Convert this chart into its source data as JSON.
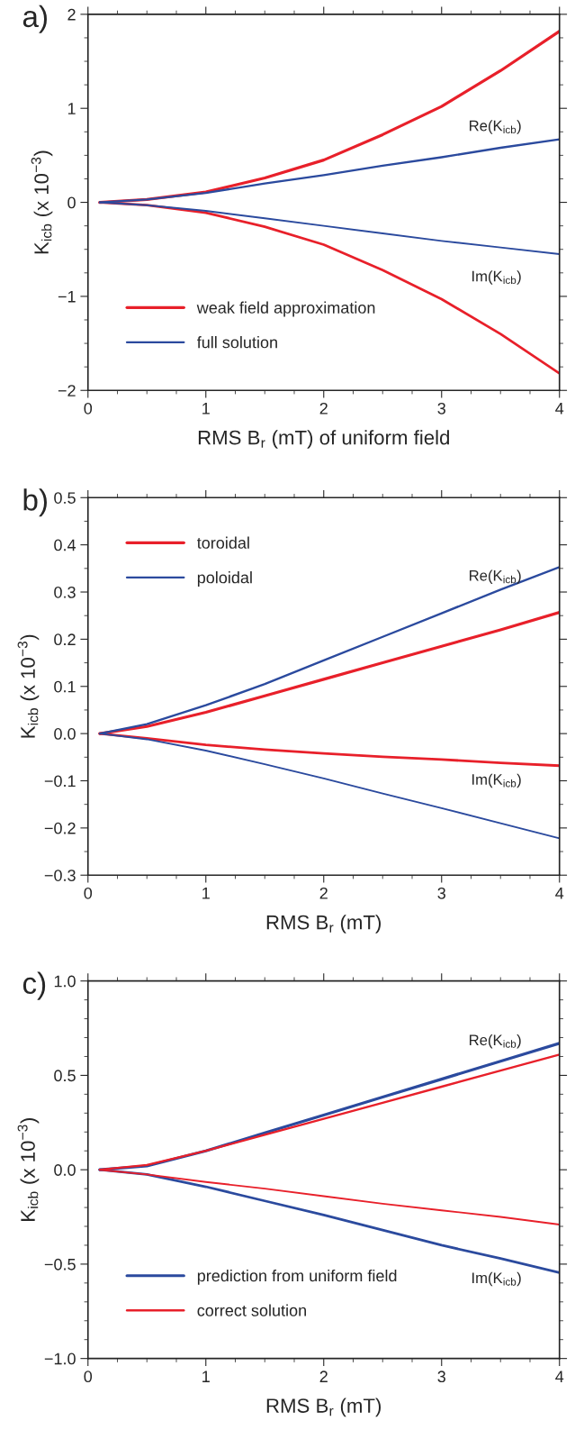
{
  "chart_data": [
    {
      "type": "line",
      "title": "a)",
      "xlabel": "RMS B$_{r}$ (mT) of uniform field",
      "ylabel": "K$_{icb}$ (x 10$^{−3}$)",
      "x": [
        0.1,
        0.5,
        1,
        1.5,
        2,
        2.5,
        3,
        3.5,
        4
      ],
      "series": [
        {
          "name": "weak field approximation",
          "color": "#e8202a",
          "values": [
            0,
            0.03,
            0.11,
            0.26,
            0.45,
            0.72,
            1.02,
            1.4,
            1.82
          ]
        },
        {
          "color": "#e8202a",
          "values": [
            0,
            -0.03,
            -0.11,
            -0.26,
            -0.45,
            -0.72,
            -1.03,
            -1.4,
            -1.82
          ]
        },
        {
          "name": "full solution",
          "color": "#2b4a9e",
          "values": [
            0,
            0.03,
            0.1,
            0.2,
            0.29,
            0.39,
            0.48,
            0.58,
            0.67
          ]
        },
        {
          "color": "#2b4a9e",
          "values": [
            0,
            -0.03,
            -0.09,
            -0.17,
            -0.25,
            -0.33,
            -0.41,
            -0.48,
            -0.55
          ]
        }
      ],
      "annotations": [
        "Re(K$_{icb}$)",
        "Im(K$_{icb}$)"
      ],
      "xlim": [
        0,
        4
      ],
      "xticks": [
        0,
        1,
        2,
        3,
        4
      ],
      "ylim": [
        -2,
        2
      ],
      "yticks": [
        {
          "value": -2,
          "label": "−2"
        },
        {
          "value": -1,
          "label": "−1"
        },
        0,
        1,
        2
      ],
      "legend": "bottom left",
      "grid": false,
      "line_style": "solid"
    },
    {
      "type": "line",
      "title": "b)",
      "xlabel": "RMS B$_{r}$ (mT)",
      "ylabel": "K$_{icb}$ (x 10$^{−3}$)",
      "x": [
        0.1,
        0.5,
        1,
        1.5,
        2,
        2.5,
        3,
        3.5,
        4
      ],
      "series": [
        {
          "name": "toroidal",
          "color": "#e8202a",
          "values": [
            0,
            0.015,
            0.045,
            0.08,
            0.115,
            0.15,
            0.185,
            0.22,
            0.257
          ]
        },
        {
          "color": "#e8202a",
          "values": [
            0,
            -0.01,
            -0.024,
            -0.034,
            -0.042,
            -0.049,
            -0.055,
            -0.062,
            -0.068
          ]
        },
        {
          "name": "poloidal",
          "color": "#2b4a9e",
          "values": [
            0,
            0.02,
            0.06,
            0.105,
            0.155,
            0.205,
            0.255,
            0.305,
            0.353
          ]
        },
        {
          "color": "#2b4a9e",
          "values": [
            0,
            -0.012,
            -0.036,
            -0.065,
            -0.095,
            -0.127,
            -0.158,
            -0.19,
            -0.222
          ]
        }
      ],
      "annotations": [
        "Re(K$_{icb}$)",
        "Im(K$_{icb}$)"
      ],
      "xlim": [
        0,
        4
      ],
      "xticks": [
        0,
        1,
        2,
        3,
        4
      ],
      "ylim": [
        -0.3,
        0.5
      ],
      "yticks": [
        {
          "value": -0.3,
          "label": "−0.3"
        },
        {
          "value": -0.2,
          "label": "−0.2"
        },
        {
          "value": -0.1,
          "label": "−0.1"
        },
        {
          "value": 0,
          "label": "0.0"
        },
        0.1,
        0.2,
        0.3,
        0.4,
        0.5
      ],
      "legend": "top left",
      "grid": false,
      "line_style": "solid"
    },
    {
      "type": "line",
      "title": "c)",
      "xlabel": "RMS B$_{r}$ (mT)",
      "ylabel": "K$_{icb}$ (x 10$^{−3}$)",
      "x": [
        0.1,
        0.5,
        1,
        1.5,
        2,
        2.5,
        3,
        3.5,
        4
      ],
      "series": [
        {
          "name": "prediction from uniform field",
          "color": "#2b4a9e",
          "values": [
            0,
            0.02,
            0.1,
            0.195,
            0.29,
            0.385,
            0.48,
            0.575,
            0.67
          ]
        },
        {
          "color": "#2b4a9e",
          "values": [
            0,
            -0.025,
            -0.09,
            -0.165,
            -0.24,
            -0.32,
            -0.4,
            -0.47,
            -0.545
          ]
        },
        {
          "name": "correct solution",
          "color": "#e8202a",
          "values": [
            0,
            0.025,
            0.1,
            0.185,
            0.27,
            0.355,
            0.44,
            0.525,
            0.61
          ]
        },
        {
          "color": "#e8202a",
          "values": [
            0,
            -0.025,
            -0.065,
            -0.1,
            -0.14,
            -0.18,
            -0.215,
            -0.25,
            -0.29
          ]
        }
      ],
      "annotations": [
        "Re(K$_{icb}$)",
        "Im(K$_{icb}$)"
      ],
      "xlim": [
        0,
        4
      ],
      "xticks": [
        0,
        1,
        2,
        3,
        4
      ],
      "ylim": [
        -1,
        1
      ],
      "yticks": [
        {
          "value": -1,
          "label": "−1.0"
        },
        {
          "value": -0.5,
          "label": "−0.5"
        },
        {
          "value": 0,
          "label": "0.0"
        },
        0.5,
        {
          "value": 1,
          "label": "1.0"
        }
      ],
      "legend": "bottom left",
      "grid": false,
      "line_style": "solid"
    }
  ]
}
